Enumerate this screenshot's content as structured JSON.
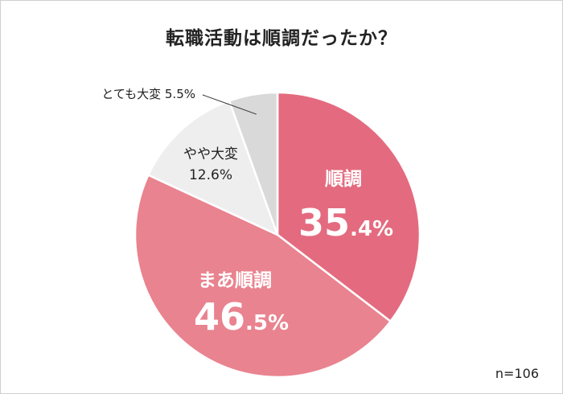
{
  "chart_data": {
    "type": "pie",
    "title": "転職活動は順調だったか？",
    "note": "n=106",
    "slices": [
      {
        "label": "順調",
        "value": 35.4,
        "big": "35",
        "small": ".4%",
        "color": "#e46b7f"
      },
      {
        "label": "まあ順調",
        "value": 46.5,
        "big": "46",
        "small": ".5%",
        "color": "#e9838f"
      },
      {
        "label": "やや大変",
        "value": 12.6,
        "pct": "12.6%",
        "color": "#eeeeee"
      },
      {
        "label": "とても大変",
        "value": 5.5,
        "pct": "5.5%",
        "color": "#d9d9d9"
      }
    ]
  }
}
